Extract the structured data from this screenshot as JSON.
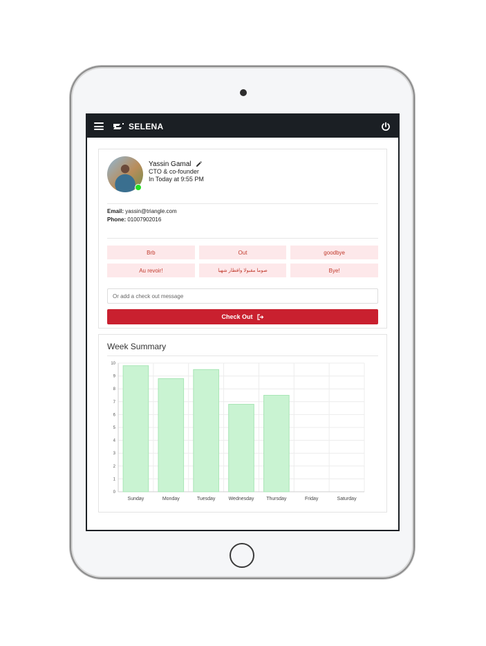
{
  "header": {
    "app_title": "SELENA",
    "menu_icon": "hamburger-menu-icon",
    "power_icon": "power-icon"
  },
  "profile": {
    "name": "Yassin Gamal",
    "role": "CTO & co-founder",
    "status_time": "In Today at 9:55 PM",
    "online_color": "#22e022",
    "email_label": "Email:",
    "email": "yassin@triangle.com",
    "phone_label": "Phone:",
    "phone": "01007902016"
  },
  "quick_messages": [
    "Brb",
    "Out",
    "goodbye",
    "Au revoir!",
    "صوما مقبولا وافطار شهيا",
    "Bye!"
  ],
  "checkout": {
    "placeholder": "Or add a check out message",
    "button_label": "Check Out",
    "accent_color": "#c9202f"
  },
  "summary": {
    "title": "Week Summary"
  },
  "chart_data": {
    "type": "bar",
    "title": "",
    "xlabel": "",
    "ylabel": "",
    "categories": [
      "Sunday",
      "Monday",
      "Tuesday",
      "Wednesday",
      "Thursday",
      "Friday",
      "Saturday"
    ],
    "values": [
      9.8,
      8.8,
      9.5,
      6.8,
      7.5,
      0,
      0
    ],
    "ylim": [
      0,
      10
    ],
    "yticks": [
      0,
      1,
      2,
      3,
      4,
      5,
      6,
      7,
      8,
      9,
      10
    ],
    "grid": true,
    "bar_color": "#c9f3d2",
    "bar_border_color": "#a8e6b6"
  }
}
